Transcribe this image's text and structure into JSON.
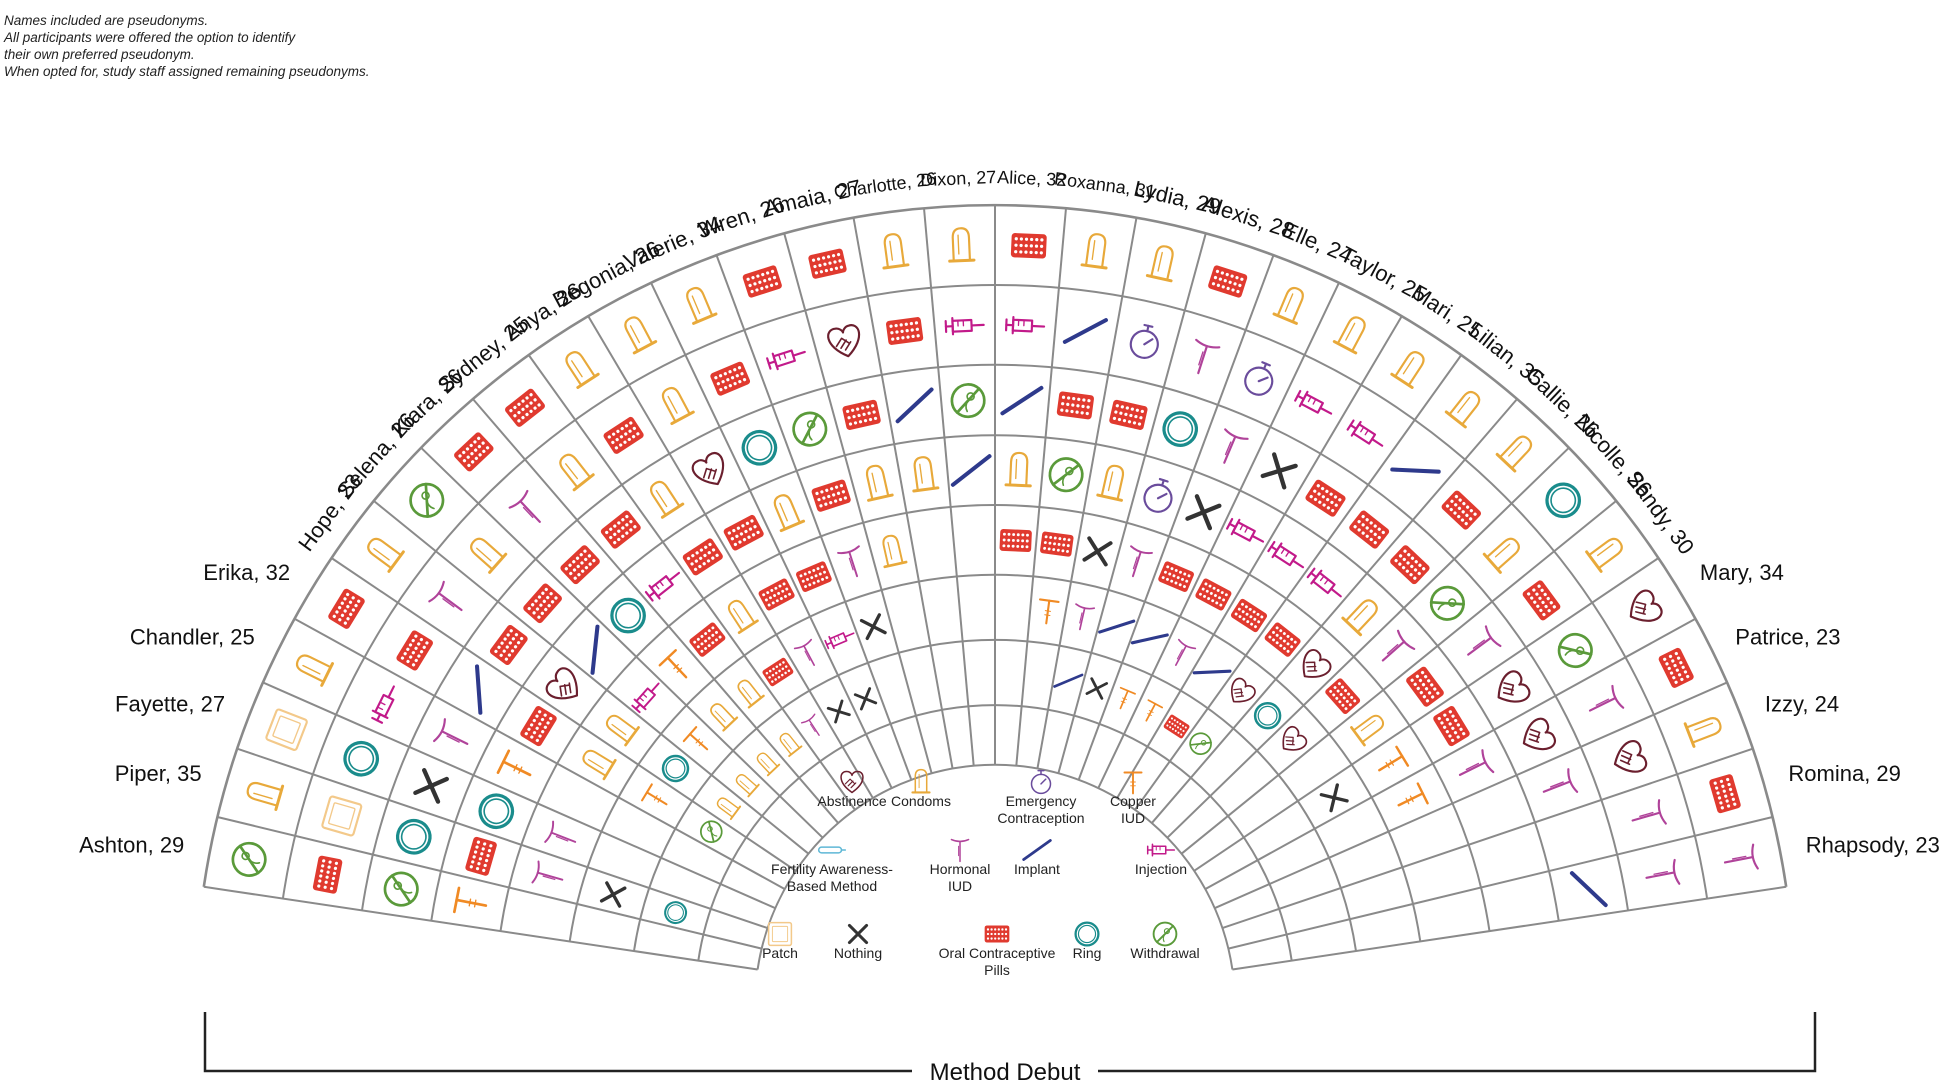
{
  "note": [
    "Names included are pseudonyms.",
    "All participants were offered the option to identify",
    "their own preferred pseudonym.",
    "When opted for, study staff assigned remaining pseudonyms."
  ],
  "footer_label": "Method Debut",
  "colors": {
    "grid": "#8a8a8a",
    "abstinence": "#6b1f2e",
    "condoms": "#e8a93a",
    "emergency": "#6a4c9c",
    "copper_iud": "#f08a24",
    "fam": "#5fb8d6",
    "hormonal_iud": "#b0439a",
    "implant": "#2e3a8c",
    "injection": "#c21a8a",
    "patch": "#f3c98a",
    "nothing": "#333333",
    "pill": "#e03a2f",
    "ring": "#1a8c8c",
    "withdrawal": "#5a9a3a"
  },
  "legend": [
    {
      "key": "abstinence",
      "label": "Abstinence",
      "icon": "abstinence-icon"
    },
    {
      "key": "condoms",
      "label": "Condoms",
      "icon": "condom-icon"
    },
    {
      "key": "emergency",
      "label": "Emergency",
      "label2": "Contraception",
      "icon": "stopwatch-icon"
    },
    {
      "key": "copper_iud",
      "label": "Copper",
      "label2": "IUD",
      "icon": "copper-iud-icon"
    },
    {
      "key": "fam",
      "label": "Fertility Awareness-",
      "label2": "Based Method",
      "icon": "thermometer-icon"
    },
    {
      "key": "hormonal_iud",
      "label": "Hormonal",
      "label2": "IUD",
      "icon": "hormonal-iud-icon"
    },
    {
      "key": "implant",
      "label": "Implant",
      "icon": "implant-icon"
    },
    {
      "key": "injection",
      "label": "Injection",
      "icon": "syringe-icon"
    },
    {
      "key": "patch",
      "label": "Patch",
      "icon": "patch-icon"
    },
    {
      "key": "nothing",
      "label": "Nothing",
      "icon": "x-icon"
    },
    {
      "key": "pill",
      "label": "Oral Contraceptive",
      "label2": "Pills",
      "icon": "pill-pack-icon"
    },
    {
      "key": "ring",
      "label": "Ring",
      "icon": "ring-icon"
    },
    {
      "key": "withdrawal",
      "label": "Withdrawal",
      "icon": "withdrawal-icon"
    }
  ],
  "participants": [
    {
      "name": "Ashton, 29",
      "methods": [
        "withdrawal",
        "pill",
        "withdrawal",
        "copper_iud"
      ]
    },
    {
      "name": "Piper, 35",
      "methods": [
        "condoms",
        "patch",
        "ring",
        "pill",
        "hormonal_iud",
        "nothing",
        "ring"
      ]
    },
    {
      "name": "Fayette, 27",
      "methods": [
        "patch",
        "ring",
        "nothing",
        "ring",
        "hormonal_iud"
      ]
    },
    {
      "name": "Chandler, 25",
      "methods": [
        "condoms",
        "injection",
        "hormonal_iud",
        "copper_iud"
      ]
    },
    {
      "name": "Erika, 32",
      "methods": [
        "pill",
        "pill",
        "implant",
        "pill",
        "condoms",
        "copper_iud",
        "withdrawal"
      ]
    },
    {
      "name": "Hope, 23",
      "methods": [
        "condoms",
        "hormonal_iud",
        "pill",
        "abstinence",
        "condoms",
        "ring",
        "condoms"
      ]
    },
    {
      "name": "Selena, 26",
      "methods": [
        "withdrawal",
        "condoms",
        "pill",
        "implant",
        "injection",
        "copper_iud",
        "condoms"
      ]
    },
    {
      "name": "Kiara, 26",
      "methods": [
        "pill",
        "hormonal_iud",
        "pill",
        "ring",
        "copper_iud",
        "condoms",
        "condoms"
      ]
    },
    {
      "name": "Sydney, 25",
      "methods": [
        "pill",
        "condoms",
        "pill",
        "injection",
        "pill",
        "condoms",
        "condoms"
      ]
    },
    {
      "name": "Anya, 26",
      "methods": [
        "condoms",
        "pill",
        "condoms",
        "pill",
        "condoms",
        "pill",
        "hormonal_iud"
      ]
    },
    {
      "name": "Begonia, 26",
      "methods": [
        "condoms",
        "condoms",
        "abstinence",
        "pill",
        "pill",
        "hormonal_iud",
        "nothing"
      ]
    },
    {
      "name": "Valerie, 34",
      "methods": [
        "condoms",
        "pill",
        "ring",
        "condoms",
        "pill",
        "injection",
        "nothing"
      ]
    },
    {
      "name": "Wren, 26",
      "methods": [
        "pill",
        "injection",
        "withdrawal",
        "pill",
        "hormonal_iud",
        "nothing"
      ]
    },
    {
      "name": "Amaia, 27",
      "methods": [
        "pill",
        "abstinence",
        "pill",
        "condoms",
        "condoms"
      ]
    },
    {
      "name": "Charlotte, 26",
      "methods": [
        "condoms",
        "pill",
        "implant",
        "condoms"
      ]
    },
    {
      "name": "Dixon, 27",
      "methods": [
        "condoms",
        "injection",
        "withdrawal",
        "implant"
      ]
    },
    {
      "name": "Alice, 32",
      "methods": [
        "pill",
        "injection",
        "implant",
        "condoms",
        "pill"
      ]
    },
    {
      "name": "Roxanna, 31",
      "methods": [
        "condoms",
        "implant",
        "pill",
        "withdrawal",
        "pill",
        "copper_iud"
      ]
    },
    {
      "name": "Lydia, 29",
      "methods": [
        "condoms",
        "emergency",
        "pill",
        "condoms",
        "nothing",
        "hormonal_iud",
        "implant"
      ]
    },
    {
      "name": "Alexis, 28",
      "methods": [
        "pill",
        "hormonal_iud",
        "ring",
        "emergency",
        "hormonal_iud",
        "implant",
        "nothing"
      ]
    },
    {
      "name": "Elle, 24",
      "methods": [
        "condoms",
        "emergency",
        "hormonal_iud",
        "nothing",
        "pill",
        "implant",
        "copper_iud"
      ]
    },
    {
      "name": "Taylor, 25",
      "methods": [
        "condoms",
        "injection",
        "nothing",
        "injection",
        "pill",
        "hormonal_iud",
        "copper_iud"
      ]
    },
    {
      "name": "Mari, 25",
      "methods": [
        "condoms",
        "injection",
        "pill",
        "injection",
        "pill",
        "implant",
        "pill"
      ]
    },
    {
      "name": "Lilian, 35",
      "methods": [
        "condoms",
        "implant",
        "pill",
        "injection",
        "pill",
        "abstinence",
        "withdrawal"
      ]
    },
    {
      "name": "Callie, 26",
      "methods": [
        "condoms",
        "pill",
        "pill",
        "condoms",
        "abstinence",
        "ring"
      ]
    },
    {
      "name": "Nicolle, 26",
      "methods": [
        "ring",
        "condoms",
        "withdrawal",
        "hormonal_iud",
        "pill",
        "abstinence"
      ]
    },
    {
      "name": "Sandy, 30",
      "methods": [
        "condoms",
        "pill",
        "hormonal_iud",
        "pill",
        "condoms"
      ]
    },
    {
      "name": "Mary, 34",
      "methods": [
        "abstinence",
        "withdrawal",
        "abstinence",
        "pill",
        "copper_iud",
        "nothing"
      ]
    },
    {
      "name": "Patrice, 23",
      "methods": [
        "pill",
        "hormonal_iud",
        "abstinence",
        "hormonal_iud",
        "copper_iud"
      ]
    },
    {
      "name": "Izzy, 24",
      "methods": [
        "condoms",
        "abstinence",
        "hormonal_iud"
      ]
    },
    {
      "name": "Romina, 29",
      "methods": [
        "pill",
        "hormonal_iud"
      ]
    },
    {
      "name": "Rhapsody, 23",
      "methods": [
        "hormonal_iud",
        "hormonal_iud",
        "implant"
      ]
    }
  ]
}
